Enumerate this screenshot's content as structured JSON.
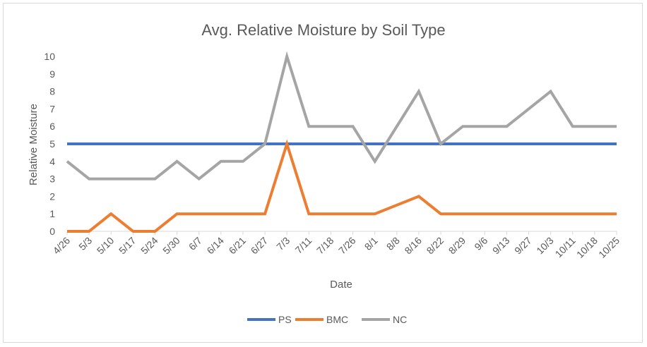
{
  "chart_data": {
    "type": "line",
    "title": "Avg. Relative Moisture by Soil Type",
    "xlabel": "Date",
    "ylabel": "Relative Moisture",
    "ylim": [
      0,
      10
    ],
    "yticks": [
      0,
      1,
      2,
      3,
      4,
      5,
      6,
      7,
      8,
      9,
      10
    ],
    "grid": false,
    "legend_position": "bottom",
    "categories": [
      "4/26",
      "5/3",
      "5/10",
      "5/17",
      "5/24",
      "5/30",
      "6/7",
      "6/14",
      "6/21",
      "6/27",
      "7/3",
      "7/11",
      "7/18",
      "7/26",
      "8/1",
      "8/8",
      "8/16",
      "8/22",
      "8/29",
      "9/6",
      "9/13",
      "9/27",
      "10/3",
      "10/11",
      "10/18",
      "10/25"
    ],
    "series": [
      {
        "name": "PS",
        "color": "#4472c4",
        "values": [
          5,
          5,
          5,
          5,
          5,
          5,
          5,
          5,
          5,
          5,
          5,
          5,
          5,
          5,
          5,
          5,
          5,
          5,
          5,
          5,
          5,
          5,
          5,
          5,
          5,
          5
        ]
      },
      {
        "name": "BMC",
        "color": "#ed7d31",
        "values": [
          0,
          0,
          1,
          0,
          0,
          1,
          1,
          1,
          1,
          1,
          5,
          1,
          1,
          1,
          1,
          1.5,
          2,
          1,
          1,
          1,
          1,
          1,
          1,
          1,
          1,
          1
        ]
      },
      {
        "name": "NC",
        "color": "#a5a5a5",
        "values": [
          4,
          3,
          3,
          3,
          3,
          4,
          3,
          4,
          4,
          5,
          10,
          6,
          6,
          6,
          4,
          6,
          8,
          5,
          6,
          6,
          6,
          7,
          8,
          6,
          6,
          6
        ]
      }
    ]
  }
}
